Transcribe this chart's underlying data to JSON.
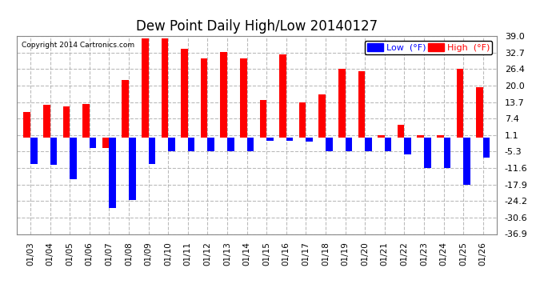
{
  "title": "Dew Point Daily High/Low 20140127",
  "copyright": "Copyright 2014 Cartronics.com",
  "dates": [
    "01/03",
    "01/04",
    "01/05",
    "01/06",
    "01/07",
    "01/08",
    "01/09",
    "01/10",
    "01/11",
    "01/12",
    "01/13",
    "01/14",
    "01/15",
    "01/16",
    "01/17",
    "01/18",
    "01/19",
    "01/20",
    "01/21",
    "01/22",
    "01/23",
    "01/24",
    "01/25",
    "01/26"
  ],
  "high": [
    10.0,
    12.5,
    12.0,
    13.0,
    -4.0,
    22.0,
    38.0,
    38.0,
    34.0,
    30.5,
    33.0,
    30.5,
    14.5,
    32.0,
    13.7,
    16.5,
    26.4,
    25.5,
    1.1,
    5.0,
    1.1,
    1.1,
    26.4,
    19.5
  ],
  "low": [
    -10.0,
    -10.5,
    -16.0,
    -4.0,
    -27.0,
    -24.0,
    -10.0,
    -5.3,
    -5.3,
    -5.3,
    -5.3,
    -5.3,
    -1.1,
    -1.1,
    -1.5,
    -5.3,
    -5.3,
    -5.3,
    -5.3,
    -6.5,
    -11.6,
    -11.6,
    -17.9,
    -7.5
  ],
  "ylim": [
    -36.9,
    39.0
  ],
  "yticks": [
    39.0,
    32.7,
    26.4,
    20.0,
    13.7,
    7.4,
    1.1,
    -5.3,
    -11.6,
    -17.9,
    -24.2,
    -30.6,
    -36.9
  ],
  "high_color": "#FF0000",
  "low_color": "#0000FF",
  "bg_color": "#FFFFFF",
  "grid_color": "#AAAAAA"
}
